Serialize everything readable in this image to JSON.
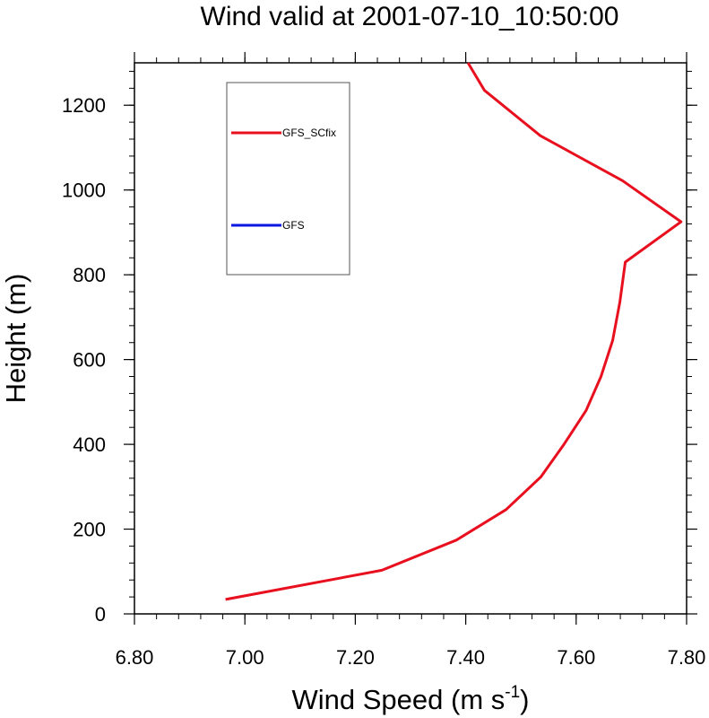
{
  "chart_data": {
    "type": "line",
    "title": "Wind valid at 2001-07-10_10:50:00",
    "xlabel": "Wind Speed (m s",
    "xlabel_superscript": "-1",
    "xlabel_suffix": ")",
    "ylabel": "Height (m)",
    "xlim": [
      6.8,
      7.8
    ],
    "ylim": [
      0,
      1300
    ],
    "x_major_ticks": [
      6.8,
      7.0,
      7.2,
      7.4,
      7.6,
      7.8
    ],
    "x_tick_labels": [
      "6.80",
      "7.00",
      "7.20",
      "7.40",
      "7.60",
      "7.80"
    ],
    "y_major_ticks": [
      0,
      200,
      400,
      600,
      800,
      1000,
      1200
    ],
    "y_tick_labels": [
      "0",
      "200",
      "400",
      "600",
      "800",
      "1000",
      "1200"
    ],
    "x_minor_step": 0.04,
    "y_minor_step": 40,
    "grid": false,
    "legend_position": "top-left",
    "series": [
      {
        "name": "GFS_SCfix",
        "color": "#e8101e",
        "points": [
          {
            "x": 6.965,
            "y": 34
          },
          {
            "x": 7.248,
            "y": 103
          },
          {
            "x": 7.383,
            "y": 174
          },
          {
            "x": 7.473,
            "y": 246
          },
          {
            "x": 7.536,
            "y": 323
          },
          {
            "x": 7.578,
            "y": 400
          },
          {
            "x": 7.618,
            "y": 480
          },
          {
            "x": 7.645,
            "y": 560
          },
          {
            "x": 7.666,
            "y": 645
          },
          {
            "x": 7.679,
            "y": 735
          },
          {
            "x": 7.689,
            "y": 830
          },
          {
            "x": 7.79,
            "y": 925
          },
          {
            "x": 7.684,
            "y": 1022
          },
          {
            "x": 7.535,
            "y": 1128
          },
          {
            "x": 7.434,
            "y": 1235
          },
          {
            "x": 7.404,
            "y": 1300
          }
        ]
      },
      {
        "name": "GFS",
        "color": "#0b16e0",
        "points": []
      }
    ]
  }
}
